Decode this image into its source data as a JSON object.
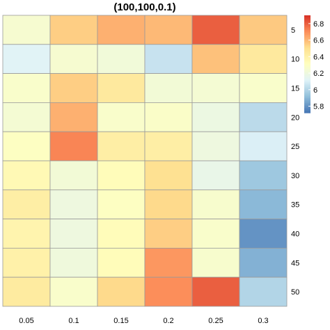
{
  "chart_data": {
    "type": "heatmap",
    "title": "(100,100,0.1)",
    "x_categories": [
      "0.05",
      "0.1",
      "0.15",
      "0.2",
      "0.25",
      "0.3"
    ],
    "y_categories": [
      "5",
      "10",
      "15",
      "20",
      "25",
      "30",
      "35",
      "40",
      "45",
      "50"
    ],
    "values": [
      [
        6.25,
        6.55,
        6.62,
        6.6,
        6.8,
        6.56
      ],
      [
        6.12,
        6.25,
        6.22,
        6.05,
        6.58,
        6.45
      ],
      [
        6.27,
        6.55,
        6.45,
        6.23,
        6.24,
        6.27
      ],
      [
        6.24,
        6.62,
        6.27,
        6.28,
        6.19,
        6.02
      ],
      [
        6.3,
        6.72,
        6.42,
        6.42,
        6.2,
        6.1
      ],
      [
        6.35,
        6.23,
        6.33,
        6.5,
        6.17,
        5.95
      ],
      [
        6.42,
        6.2,
        6.3,
        6.52,
        6.26,
        5.9
      ],
      [
        6.38,
        6.2,
        6.33,
        6.55,
        6.27,
        5.8
      ],
      [
        6.4,
        6.21,
        6.33,
        6.68,
        6.26,
        5.88
      ],
      [
        6.44,
        6.27,
        6.52,
        6.7,
        6.8,
        6.0
      ]
    ],
    "colorbar": {
      "range": [
        5.72,
        6.9
      ],
      "ticks": [
        "5.8",
        "6",
        "6.2",
        "6.4",
        "6.6",
        "6.8"
      ],
      "palette": [
        "#4575b4",
        "#91bfdb",
        "#e0f3f8",
        "#ffffbf",
        "#fee090",
        "#fc8d59",
        "#d73027"
      ]
    },
    "grid": true,
    "legend": "right"
  }
}
